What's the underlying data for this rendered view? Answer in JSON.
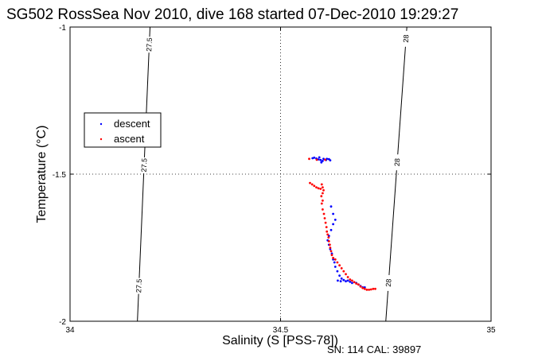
{
  "figure": {
    "title": "SG502 RossSea Nov 2010, dive 168 started 07-Dec-2010 19:29:27",
    "xlabel": "Salinity (S [PSS-78])",
    "ylabel": "Temperature (°C)",
    "footer": "SN: 114  CAL: 39897"
  },
  "chart_data": {
    "type": "scatter",
    "title": "SG502 RossSea Nov 2010, dive 168 started 07-Dec-2010 19:29:27",
    "xlabel": "Salinity (S [PSS-78])",
    "ylabel": "Temperature (°C)",
    "xlim": [
      34,
      35
    ],
    "ylim": [
      -2,
      -1
    ],
    "xticks": [
      "34",
      "34.5",
      "35"
    ],
    "yticks": [
      "-1",
      "-1.5",
      "-2"
    ],
    "grid": "dotted lines at x=34.5 and y=-1.5",
    "legend_position": "upper-left",
    "colors": {
      "descent": "#0000ff",
      "ascent": "#ff0000",
      "contour": "#000000"
    },
    "contours": [
      {
        "label": "27.5",
        "points": [
          [
            34.16,
            -2.0
          ],
          [
            34.19,
            -1.0
          ]
        ],
        "label_at": [
          -1.06,
          -1.47,
          -1.88
        ]
      },
      {
        "label": "28",
        "points": [
          [
            34.75,
            -2.0
          ],
          [
            34.8,
            -1.0
          ]
        ],
        "label_at": [
          -1.04,
          -1.46,
          -1.87
        ]
      }
    ],
    "series": [
      {
        "name": "descent",
        "points": [
          [
            34.576,
            -1.446
          ],
          [
            34.58,
            -1.444
          ],
          [
            34.585,
            -1.447
          ],
          [
            34.59,
            -1.45
          ],
          [
            34.595,
            -1.452
          ],
          [
            34.6,
            -1.455
          ],
          [
            34.597,
            -1.46
          ],
          [
            34.602,
            -1.448
          ],
          [
            34.61,
            -1.448
          ],
          [
            34.615,
            -1.449
          ],
          [
            34.618,
            -1.453
          ],
          [
            34.592,
            -1.443
          ],
          [
            34.608,
            -1.452
          ],
          [
            34.62,
            -1.61
          ],
          [
            34.625,
            -1.635
          ],
          [
            34.63,
            -1.655
          ],
          [
            34.625,
            -1.67
          ],
          [
            34.62,
            -1.69
          ],
          [
            34.615,
            -1.71
          ],
          [
            34.612,
            -1.725
          ],
          [
            34.615,
            -1.74
          ],
          [
            34.618,
            -1.755
          ],
          [
            34.622,
            -1.77
          ],
          [
            34.625,
            -1.79
          ],
          [
            34.628,
            -1.8
          ],
          [
            34.63,
            -1.815
          ],
          [
            34.635,
            -1.83
          ],
          [
            34.64,
            -1.845
          ],
          [
            34.645,
            -1.855
          ],
          [
            34.65,
            -1.86
          ],
          [
            34.66,
            -1.862
          ],
          [
            34.665,
            -1.866
          ],
          [
            34.67,
            -1.87
          ],
          [
            34.68,
            -1.87
          ],
          [
            34.685,
            -1.875
          ],
          [
            34.69,
            -1.88
          ],
          [
            34.695,
            -1.885
          ],
          [
            34.7,
            -1.885
          ],
          [
            34.636,
            -1.862
          ],
          [
            34.643,
            -1.864
          ],
          [
            34.655,
            -1.864
          ]
        ]
      },
      {
        "name": "ascent",
        "points": [
          [
            34.568,
            -1.448
          ],
          [
            34.586,
            -1.451
          ],
          [
            34.606,
            -1.451
          ],
          [
            34.57,
            -1.53
          ],
          [
            34.575,
            -1.535
          ],
          [
            34.58,
            -1.54
          ],
          [
            34.585,
            -1.545
          ],
          [
            34.59,
            -1.548
          ],
          [
            34.595,
            -1.55
          ],
          [
            34.6,
            -1.545
          ],
          [
            34.598,
            -1.535
          ],
          [
            34.602,
            -1.555
          ],
          [
            34.6,
            -1.565
          ],
          [
            34.597,
            -1.575
          ],
          [
            34.6,
            -1.59
          ],
          [
            34.598,
            -1.6
          ],
          [
            34.6,
            -1.62
          ],
          [
            34.603,
            -1.635
          ],
          [
            34.605,
            -1.65
          ],
          [
            34.607,
            -1.665
          ],
          [
            34.609,
            -1.68
          ],
          [
            34.61,
            -1.695
          ],
          [
            34.612,
            -1.705
          ],
          [
            34.614,
            -1.715
          ],
          [
            34.615,
            -1.728
          ],
          [
            34.617,
            -1.74
          ],
          [
            34.618,
            -1.75
          ],
          [
            34.62,
            -1.762
          ],
          [
            34.622,
            -1.775
          ],
          [
            34.625,
            -1.785
          ],
          [
            34.63,
            -1.79
          ],
          [
            34.635,
            -1.8
          ],
          [
            34.64,
            -1.81
          ],
          [
            34.645,
            -1.82
          ],
          [
            34.65,
            -1.83
          ],
          [
            34.655,
            -1.84
          ],
          [
            34.66,
            -1.85
          ],
          [
            34.665,
            -1.858
          ],
          [
            34.67,
            -1.862
          ],
          [
            34.675,
            -1.867
          ],
          [
            34.68,
            -1.872
          ],
          [
            34.685,
            -1.875
          ],
          [
            34.69,
            -1.882
          ],
          [
            34.695,
            -1.887
          ],
          [
            34.7,
            -1.89
          ],
          [
            34.705,
            -1.893
          ],
          [
            34.71,
            -1.893
          ],
          [
            34.715,
            -1.892
          ],
          [
            34.72,
            -1.89
          ],
          [
            34.725,
            -1.89
          ]
        ]
      }
    ]
  }
}
